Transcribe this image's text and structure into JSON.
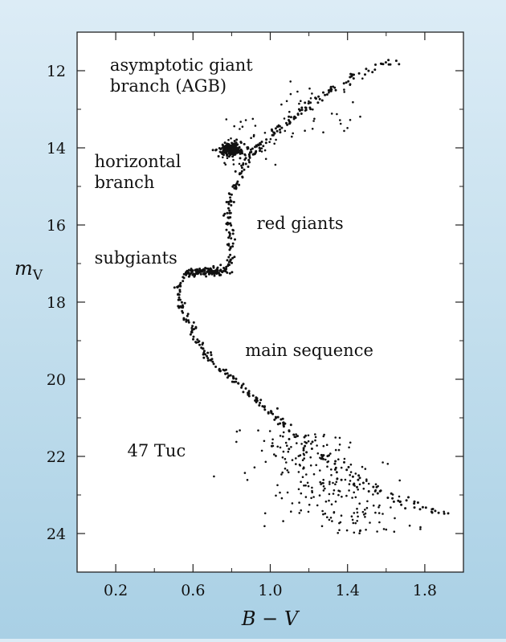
{
  "chart_data": {
    "type": "scatter",
    "title": "",
    "xlabel": "B − V",
    "ylabel": "m",
    "ylabel_subscript": "V",
    "xlim": [
      0.0,
      2.0
    ],
    "ylim": [
      25.0,
      11.0
    ],
    "y_inverted": true,
    "grid": false,
    "legend": "none",
    "x_ticks": [
      0.2,
      0.6,
      1.0,
      1.4,
      1.8
    ],
    "x_tick_labels": [
      "0.2",
      "0.6",
      "1.0",
      "1.4",
      "1.8"
    ],
    "y_ticks": [
      12,
      14,
      16,
      18,
      20,
      22,
      24
    ],
    "y_tick_labels": [
      "12",
      "14",
      "16",
      "18",
      "20",
      "22",
      "24"
    ],
    "annotations": [
      {
        "id": "agb",
        "lines": [
          "asymptotic giant",
          "branch (AGB)"
        ],
        "x": 0.17,
        "y": 12.0
      },
      {
        "id": "hb",
        "lines": [
          "horizontal",
          "branch"
        ],
        "x": 0.09,
        "y": 14.5
      },
      {
        "id": "rg",
        "lines": [
          "red giants"
        ],
        "x": 0.93,
        "y": 16.1
      },
      {
        "id": "sg",
        "lines": [
          "subgiants"
        ],
        "x": 0.09,
        "y": 17.0
      },
      {
        "id": "ms",
        "lines": [
          "main sequence"
        ],
        "x": 0.87,
        "y": 19.4
      },
      {
        "id": "cluster",
        "lines": [
          "47 Tuc"
        ],
        "x": 0.26,
        "y": 22.0
      }
    ],
    "series": [
      {
        "ridge": [
          [
            1.92,
            23.5
          ],
          [
            1.8,
            23.35
          ],
          [
            1.7,
            23.2
          ],
          [
            1.62,
            23.05
          ],
          [
            1.55,
            22.9
          ],
          [
            1.47,
            22.7
          ],
          [
            1.4,
            22.5
          ],
          [
            1.33,
            22.25
          ],
          [
            1.26,
            21.95
          ],
          [
            1.2,
            21.7
          ],
          [
            1.14,
            21.45
          ],
          [
            1.08,
            21.2
          ],
          [
            1.02,
            20.95
          ],
          [
            0.96,
            20.7
          ],
          [
            0.9,
            20.4
          ],
          [
            0.84,
            20.15
          ],
          [
            0.78,
            19.9
          ],
          [
            0.72,
            19.65
          ],
          [
            0.67,
            19.35
          ],
          [
            0.63,
            19.05
          ],
          [
            0.59,
            18.7
          ],
          [
            0.56,
            18.4
          ],
          [
            0.54,
            18.05
          ],
          [
            0.53,
            17.75
          ],
          [
            0.53,
            17.5
          ],
          [
            0.55,
            17.3
          ],
          [
            0.62,
            17.22
          ],
          [
            0.72,
            17.2
          ],
          [
            0.79,
            17.05
          ],
          [
            0.8,
            16.7
          ],
          [
            0.79,
            16.3
          ],
          [
            0.78,
            15.9
          ],
          [
            0.79,
            15.5
          ],
          [
            0.81,
            15.1
          ],
          [
            0.84,
            14.7
          ],
          [
            0.89,
            14.3
          ],
          [
            0.94,
            14.0
          ],
          [
            1.0,
            13.7
          ],
          [
            1.07,
            13.4
          ],
          [
            1.14,
            13.15
          ],
          [
            1.2,
            12.9
          ],
          [
            1.27,
            12.65
          ],
          [
            1.35,
            12.4
          ],
          [
            1.42,
            12.2
          ],
          [
            1.5,
            12.0
          ],
          [
            1.58,
            11.85
          ],
          [
            1.65,
            11.75
          ]
        ],
        "clumps": [
          {
            "x": 0.8,
            "y": 14.05,
            "sx": 0.035,
            "sy": 0.09,
            "n": 180
          },
          {
            "x": 0.66,
            "y": 17.22,
            "sx": 0.06,
            "sy": 0.06,
            "n": 90
          }
        ],
        "scatter_regions": [
          {
            "x0": 1.05,
            "x1": 1.75,
            "y0": 21.3,
            "y1": 24.0,
            "n": 240
          },
          {
            "x0": 0.75,
            "x1": 1.05,
            "y0": 13.2,
            "y1": 14.5,
            "n": 40
          },
          {
            "x0": 1.05,
            "x1": 1.5,
            "y0": 12.2,
            "y1": 13.8,
            "n": 40
          }
        ]
      }
    ]
  }
}
